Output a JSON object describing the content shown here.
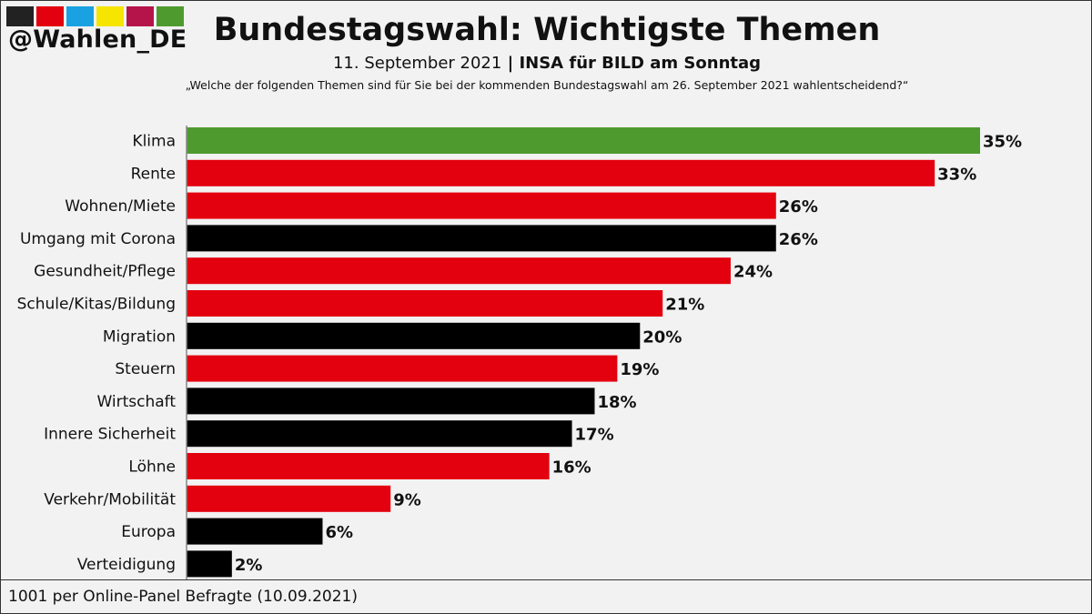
{
  "header": {
    "handle": "@Wahlen_DE",
    "title": "Bundestagswahl: Wichtigste Themen",
    "subtitle_date": "11. September 2021",
    "subtitle_sep": " | ",
    "subtitle_source": "INSA für BILD am Sonntag",
    "question": "„Welche der folgenden Themen sind für Sie bei der kommenden Bundestagswahl am 26. September 2021 wahlentscheidend?“"
  },
  "logo_colors": [
    "#222222",
    "#e3000f",
    "#1aa1e1",
    "#f5e500",
    "#b5144a",
    "#4e9a2f"
  ],
  "colors": {
    "green": "#4e9a2f",
    "red": "#e3000f",
    "black": "#000000"
  },
  "chart_data": {
    "type": "bar",
    "orientation": "horizontal",
    "title": "Bundestagswahl: Wichtigste Themen",
    "categories": [
      "Klima",
      "Rente",
      "Wohnen/Miete",
      "Umgang mit Corona",
      "Gesundheit/Pflege",
      "Schule/Kitas/Bildung",
      "Migration",
      "Steuern",
      "Wirtschaft",
      "Innere Sicherheit",
      "Löhne",
      "Verkehr/Mobilität",
      "Europa",
      "Verteidigung"
    ],
    "values": [
      35,
      33,
      26,
      26,
      24,
      21,
      20,
      19,
      18,
      17,
      16,
      9,
      6,
      2
    ],
    "value_labels": [
      "35%",
      "33%",
      "26%",
      "26%",
      "24%",
      "21%",
      "20%",
      "19%",
      "18%",
      "17%",
      "16%",
      "9%",
      "6%",
      "2%"
    ],
    "bar_colors": [
      "green",
      "red",
      "red",
      "black",
      "red",
      "red",
      "black",
      "red",
      "black",
      "black",
      "red",
      "red",
      "black",
      "black"
    ],
    "unit": "%",
    "xlim": [
      0,
      35
    ]
  },
  "footer": {
    "note": "1001 per Online-Panel Befragte (10.09.2021)"
  }
}
